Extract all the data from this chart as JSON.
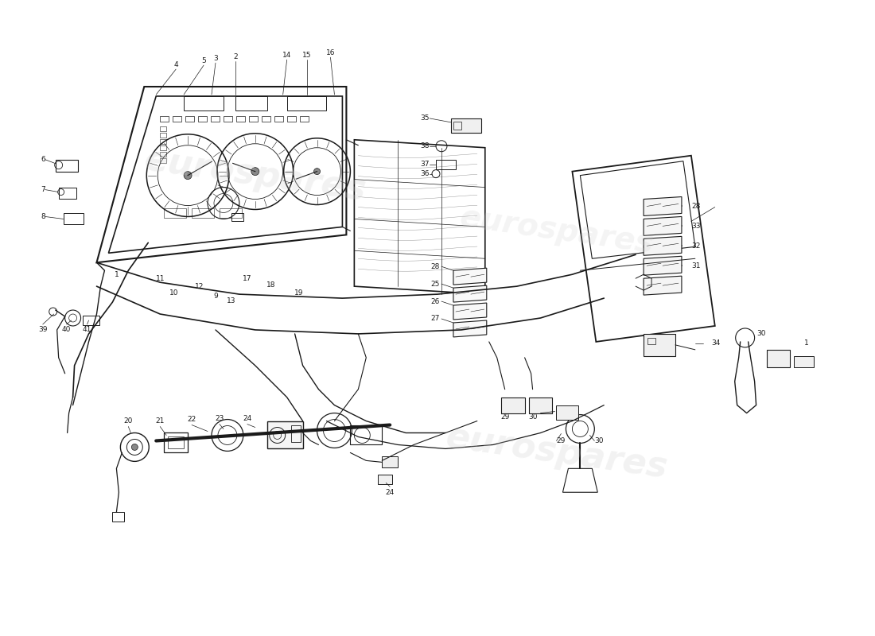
{
  "bg_color": "#ffffff",
  "line_color": "#1a1a1a",
  "watermark_color": "#cccccc",
  "watermark_text": "eurospares",
  "fig_width": 11.0,
  "fig_height": 8.0,
  "dpi": 100,
  "label_fontsize": 6.5,
  "line_width": 0.9
}
